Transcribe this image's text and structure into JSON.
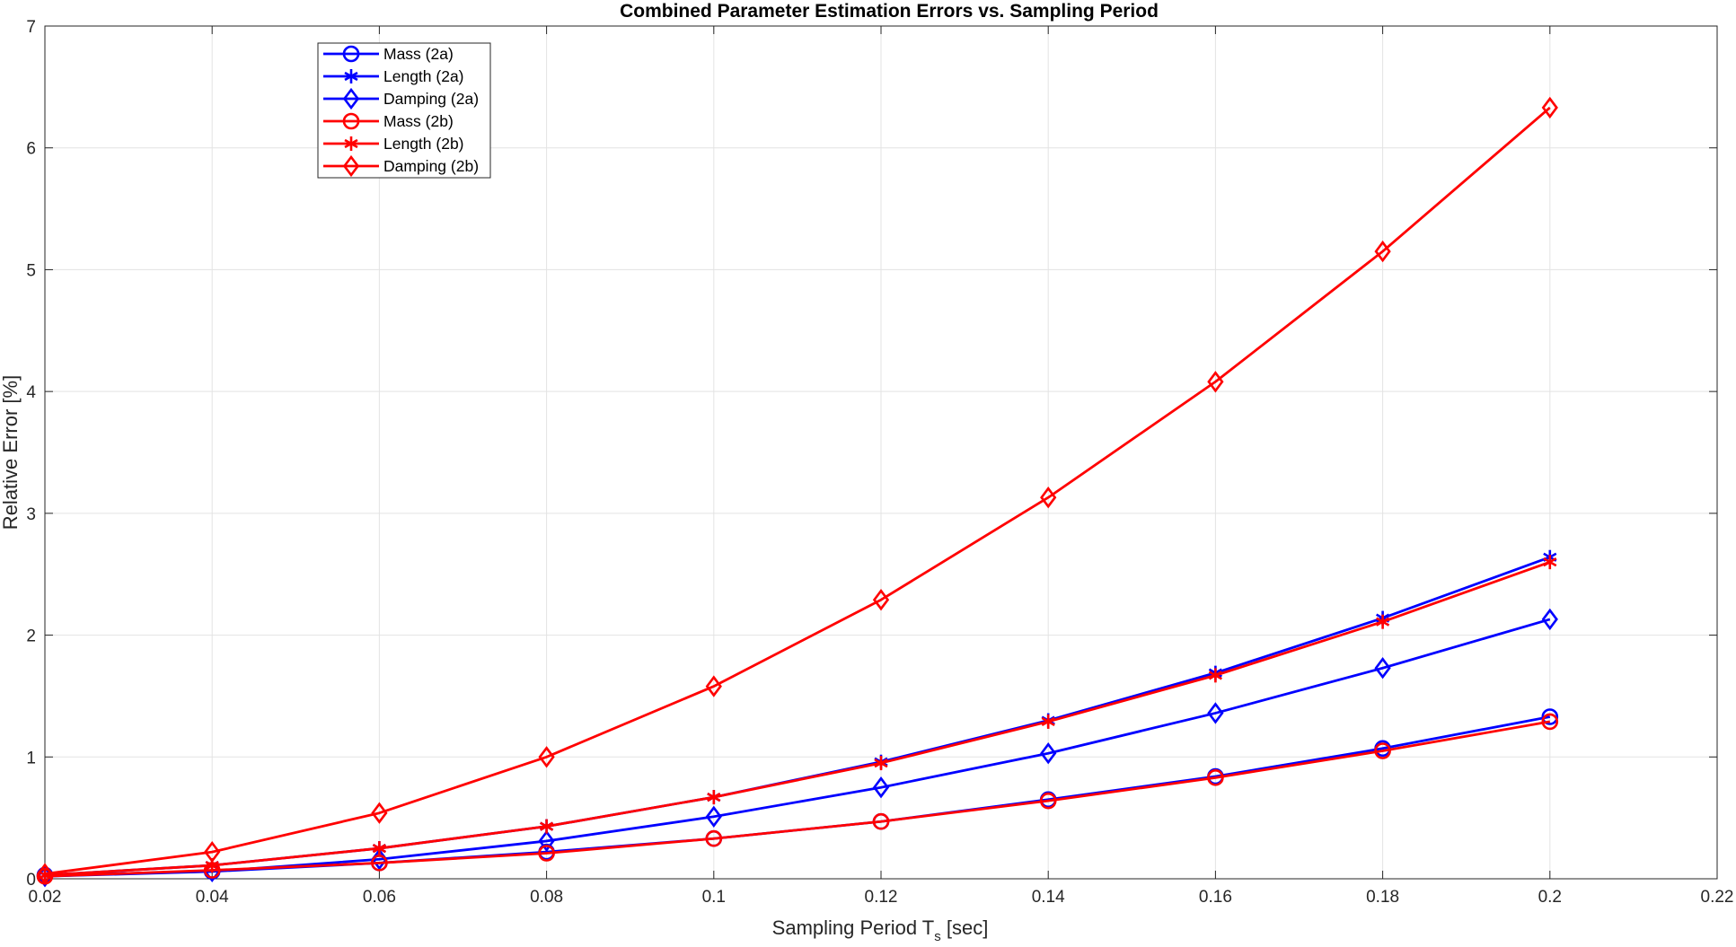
{
  "chart_data": {
    "type": "line",
    "title": "Combined Parameter Estimation Errors vs. Sampling Period",
    "xlabel_main": "Sampling Period T",
    "xlabel_sub": "s",
    "xlabel_unit": " [sec]",
    "ylabel": "Relative Error [%]",
    "xlim": [
      0.02,
      0.22
    ],
    "ylim": [
      0,
      7
    ],
    "xticks": [
      0.02,
      0.04,
      0.06,
      0.08,
      0.1,
      0.12,
      0.14,
      0.16,
      0.18,
      0.2,
      0.22
    ],
    "xtick_labels": [
      "0.02",
      "0.04",
      "0.06",
      "0.08",
      "0.1",
      "0.12",
      "0.14",
      "0.16",
      "0.18",
      "0.2",
      "0.22"
    ],
    "yticks": [
      0,
      1,
      2,
      3,
      4,
      5,
      6,
      7
    ],
    "ytick_labels": [
      "0",
      "1",
      "2",
      "3",
      "4",
      "5",
      "6",
      "7"
    ],
    "grid": true,
    "legend_position": "top-left",
    "x": [
      0.02,
      0.04,
      0.06,
      0.08,
      0.1,
      0.12,
      0.14,
      0.16,
      0.18,
      0.2
    ],
    "series": [
      {
        "name": "Mass (2a)",
        "color": "#0000ff",
        "marker": "circle",
        "values": [
          0.03,
          0.06,
          0.13,
          0.22,
          0.33,
          0.47,
          0.65,
          0.84,
          1.07,
          1.33
        ]
      },
      {
        "name": "Length (2a)",
        "color": "#0000ff",
        "marker": "asterisk",
        "values": [
          0.03,
          0.11,
          0.25,
          0.43,
          0.67,
          0.96,
          1.3,
          1.69,
          2.14,
          2.64
        ]
      },
      {
        "name": "Damping (2a)",
        "color": "#0000ff",
        "marker": "diamond",
        "values": [
          0.02,
          0.06,
          0.16,
          0.31,
          0.51,
          0.75,
          1.03,
          1.36,
          1.73,
          2.13
        ]
      },
      {
        "name": "Mass (2b)",
        "color": "#ff0000",
        "marker": "circle",
        "values": [
          0.02,
          0.07,
          0.13,
          0.21,
          0.33,
          0.47,
          0.64,
          0.83,
          1.05,
          1.29
        ]
      },
      {
        "name": "Length (2b)",
        "color": "#ff0000",
        "marker": "asterisk",
        "values": [
          0.03,
          0.11,
          0.25,
          0.43,
          0.67,
          0.95,
          1.29,
          1.67,
          2.11,
          2.6
        ]
      },
      {
        "name": "Damping (2b)",
        "color": "#ff0000",
        "marker": "diamond",
        "values": [
          0.04,
          0.22,
          0.54,
          1.0,
          1.58,
          2.29,
          3.13,
          4.08,
          5.15,
          6.33
        ]
      }
    ]
  }
}
